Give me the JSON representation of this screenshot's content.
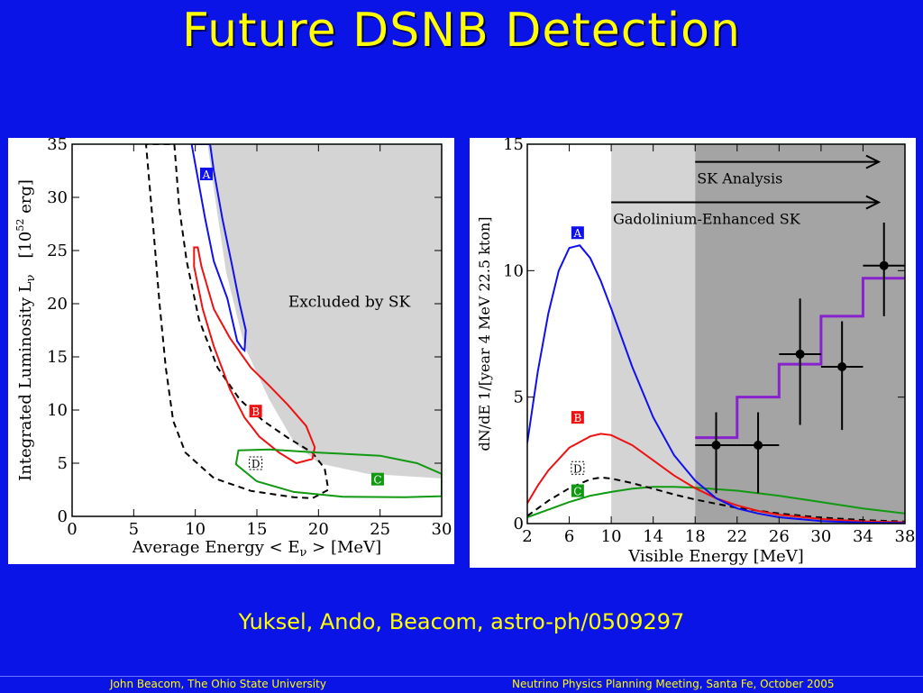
{
  "slide": {
    "title": "Future DSNB Detection",
    "citation": "Yuksel, Ando, Beacom, astro-ph/0509297",
    "footer_left": "John Beacom, The Ohio State University",
    "footer_right": "Neutrino Physics Planning Meeting, Santa Fe, October 2005"
  },
  "colors": {
    "background": "#0a14e6",
    "title": "#ffff00",
    "curve_A": "#1010ee",
    "curve_B": "#ee1111",
    "curve_C": "#119911",
    "curve_D": "#000000",
    "step": "#8822cc"
  },
  "chart_data": [
    {
      "type": "line",
      "xlabel": "Average  Energy   < E",
      "xlabel_sub": "ν",
      "xlabel_unit": " >   [MeV]",
      "ylabel": "Integrated  Luminosity   L",
      "ylabel_sub": "ν",
      "ylabel_unit": "[10",
      "ylabel_exp": "52",
      "ylabel_unit2": " erg]",
      "xlim": [
        0,
        30
      ],
      "ylim": [
        0,
        35
      ],
      "xticks": [
        0,
        5,
        10,
        15,
        20,
        25,
        30
      ],
      "yticks": [
        0,
        5,
        10,
        15,
        20,
        25,
        30,
        35
      ],
      "excluded_region_label": "Excluded by SK",
      "excluded_region": [
        [
          11,
          35
        ],
        [
          31,
          35
        ],
        [
          31,
          3.5
        ],
        [
          24,
          4
        ],
        [
          20,
          5
        ],
        [
          18,
          7
        ],
        [
          16,
          11
        ],
        [
          14,
          16
        ],
        [
          12.5,
          23
        ],
        [
          11.6,
          30
        ],
        [
          11,
          35
        ]
      ],
      "series": [
        {
          "name": "A",
          "closed": true,
          "points": [
            [
              9.7,
              35
            ],
            [
              10.8,
              28
            ],
            [
              11.5,
              24
            ],
            [
              12.6,
              20.5
            ],
            [
              13.4,
              16.5
            ],
            [
              13.8,
              15.8
            ],
            [
              14.0,
              15.6
            ],
            [
              14.1,
              17.5
            ],
            [
              13.6,
              20
            ],
            [
              13.0,
              23.5
            ],
            [
              12.2,
              28
            ],
            [
              11.5,
              32.5
            ],
            [
              11.2,
              35
            ]
          ]
        },
        {
          "name": "B",
          "closed": true,
          "points": [
            [
              9.9,
              25.3
            ],
            [
              9.9,
              23.5
            ],
            [
              10.6,
              19.5
            ],
            [
              11.5,
              16
            ],
            [
              12.8,
              12
            ],
            [
              14.0,
              9.3
            ],
            [
              15.2,
              7.5
            ],
            [
              16.8,
              6.0
            ],
            [
              18.2,
              5.0
            ],
            [
              19.5,
              5.4
            ],
            [
              19.7,
              6.5
            ],
            [
              19.0,
              8.5
            ],
            [
              17.5,
              10.5
            ],
            [
              16.0,
              12.3
            ],
            [
              14.5,
              14.0
            ],
            [
              12.8,
              16.8
            ],
            [
              11.5,
              19.5
            ],
            [
              10.5,
              23.5
            ],
            [
              10.2,
              25.3
            ]
          ]
        },
        {
          "name": "C",
          "closed": true,
          "points": [
            [
              13.5,
              6.2
            ],
            [
              16,
              6.3
            ],
            [
              20,
              6.0
            ],
            [
              25,
              5.7
            ],
            [
              28,
              5.0
            ],
            [
              30,
              4.0
            ],
            [
              30,
              1.9
            ],
            [
              27,
              1.8
            ],
            [
              22,
              1.85
            ],
            [
              18,
              2.3
            ],
            [
              15,
              3.3
            ],
            [
              13.3,
              4.9
            ]
          ]
        },
        {
          "name": "D",
          "closed": true,
          "dashed": true,
          "points": [
            [
              8.3,
              35
            ],
            [
              8.7,
              29
            ],
            [
              9.3,
              24
            ],
            [
              10.3,
              18.5
            ],
            [
              11.8,
              14.0
            ],
            [
              13.6,
              11.0
            ],
            [
              15.5,
              9.0
            ],
            [
              17.5,
              7.4
            ],
            [
              19.5,
              6.0
            ],
            [
              20.5,
              4.5
            ],
            [
              20.8,
              2.5
            ],
            [
              19.5,
              1.7
            ],
            [
              18,
              1.8
            ],
            [
              14.5,
              2.4
            ],
            [
              11.5,
              3.6
            ],
            [
              9.2,
              6.0
            ],
            [
              8.2,
              9.0
            ],
            [
              7.6,
              14.0
            ],
            [
              7.1,
              20.0
            ],
            [
              6.6,
              27.0
            ],
            [
              6.0,
              35
            ]
          ]
        }
      ],
      "curve_labels": [
        {
          "name": "A",
          "x": 10.9,
          "y": 32.2
        },
        {
          "name": "B",
          "x": 14.9,
          "y": 9.9
        },
        {
          "name": "C",
          "x": 24.8,
          "y": 3.5
        },
        {
          "name": "D",
          "x": 14.9,
          "y": 5.0
        }
      ]
    },
    {
      "type": "line",
      "xlabel": "Visible Energy [MeV]",
      "ylabel": "dN/dE   1/[year  4 MeV  22.5 kton]",
      "xlim": [
        2,
        38
      ],
      "ylim": [
        0,
        15
      ],
      "xticks": [
        2,
        6,
        10,
        14,
        18,
        22,
        26,
        30,
        34,
        38
      ],
      "yticks": [
        0,
        5,
        10,
        15
      ],
      "shaded_bands": [
        {
          "from": 10,
          "to": 18,
          "shade": "light"
        },
        {
          "from": 18,
          "to": 38,
          "shade": "dark"
        }
      ],
      "annotations": [
        {
          "text": "SK Analysis",
          "from": 18,
          "y": 14.3
        },
        {
          "text": "Gadolinium-Enhanced SK",
          "from": 10,
          "y": 12.7
        }
      ],
      "series": [
        {
          "name": "A",
          "points": [
            [
              2,
              3.2
            ],
            [
              3,
              6.0
            ],
            [
              4,
              8.3
            ],
            [
              5,
              10.0
            ],
            [
              6,
              10.9
            ],
            [
              7,
              11.0
            ],
            [
              8,
              10.5
            ],
            [
              9,
              9.6
            ],
            [
              10,
              8.5
            ],
            [
              12,
              6.2
            ],
            [
              14,
              4.2
            ],
            [
              16,
              2.7
            ],
            [
              18,
              1.7
            ],
            [
              20,
              1.0
            ],
            [
              22,
              0.6
            ],
            [
              24,
              0.4
            ],
            [
              26,
              0.25
            ],
            [
              30,
              0.1
            ],
            [
              34,
              0.04
            ],
            [
              38,
              0.02
            ]
          ]
        },
        {
          "name": "B",
          "points": [
            [
              2,
              0.8
            ],
            [
              3,
              1.5
            ],
            [
              4,
              2.1
            ],
            [
              6,
              3.0
            ],
            [
              8,
              3.45
            ],
            [
              9,
              3.55
            ],
            [
              10,
              3.5
            ],
            [
              12,
              3.1
            ],
            [
              14,
              2.5
            ],
            [
              16,
              1.9
            ],
            [
              18,
              1.4
            ],
            [
              20,
              1.0
            ],
            [
              22,
              0.72
            ],
            [
              24,
              0.5
            ],
            [
              26,
              0.35
            ],
            [
              30,
              0.18
            ],
            [
              34,
              0.09
            ],
            [
              38,
              0.05
            ]
          ]
        },
        {
          "name": "C",
          "points": [
            [
              2,
              0.25
            ],
            [
              4,
              0.55
            ],
            [
              6,
              0.85
            ],
            [
              8,
              1.1
            ],
            [
              10,
              1.25
            ],
            [
              12,
              1.38
            ],
            [
              14,
              1.45
            ],
            [
              16,
              1.45
            ],
            [
              18,
              1.42
            ],
            [
              22,
              1.3
            ],
            [
              26,
              1.1
            ],
            [
              30,
              0.85
            ],
            [
              34,
              0.6
            ],
            [
              38,
              0.4
            ]
          ]
        },
        {
          "name": "D",
          "dashed": true,
          "points": [
            [
              2,
              0.3
            ],
            [
              4,
              0.9
            ],
            [
              6,
              1.4
            ],
            [
              8,
              1.75
            ],
            [
              9,
              1.82
            ],
            [
              10,
              1.78
            ],
            [
              12,
              1.6
            ],
            [
              14,
              1.38
            ],
            [
              16,
              1.15
            ],
            [
              18,
              0.95
            ],
            [
              22,
              0.62
            ],
            [
              26,
              0.4
            ],
            [
              30,
              0.24
            ],
            [
              34,
              0.14
            ],
            [
              38,
              0.08
            ]
          ]
        }
      ],
      "step_histogram": {
        "edges": [
          18,
          22,
          26,
          30,
          34,
          38
        ],
        "values": [
          3.4,
          5.0,
          6.3,
          8.2,
          9.7
        ]
      },
      "data_points": [
        {
          "x": 20,
          "y": 3.1,
          "xerr": 2,
          "yerr_low": 1.9,
          "yerr_high": 1.3
        },
        {
          "x": 24,
          "y": 3.1,
          "xerr": 2,
          "yerr_low": 1.9,
          "yerr_high": 1.3
        },
        {
          "x": 28,
          "y": 6.7,
          "xerr": 2,
          "yerr_low": 2.8,
          "yerr_high": 2.2
        },
        {
          "x": 32,
          "y": 6.2,
          "xerr": 2,
          "yerr_low": 2.5,
          "yerr_high": 1.8
        },
        {
          "x": 36,
          "y": 10.2,
          "xerr": 2,
          "yerr_low": 2.0,
          "yerr_high": 1.7
        }
      ],
      "curve_labels": [
        {
          "name": "A",
          "x": 6.8,
          "y": 11.5
        },
        {
          "name": "B",
          "x": 6.8,
          "y": 4.2
        },
        {
          "name": "C",
          "x": 6.8,
          "y": 1.3
        },
        {
          "name": "D",
          "x": 6.8,
          "y": 2.2
        }
      ]
    }
  ]
}
